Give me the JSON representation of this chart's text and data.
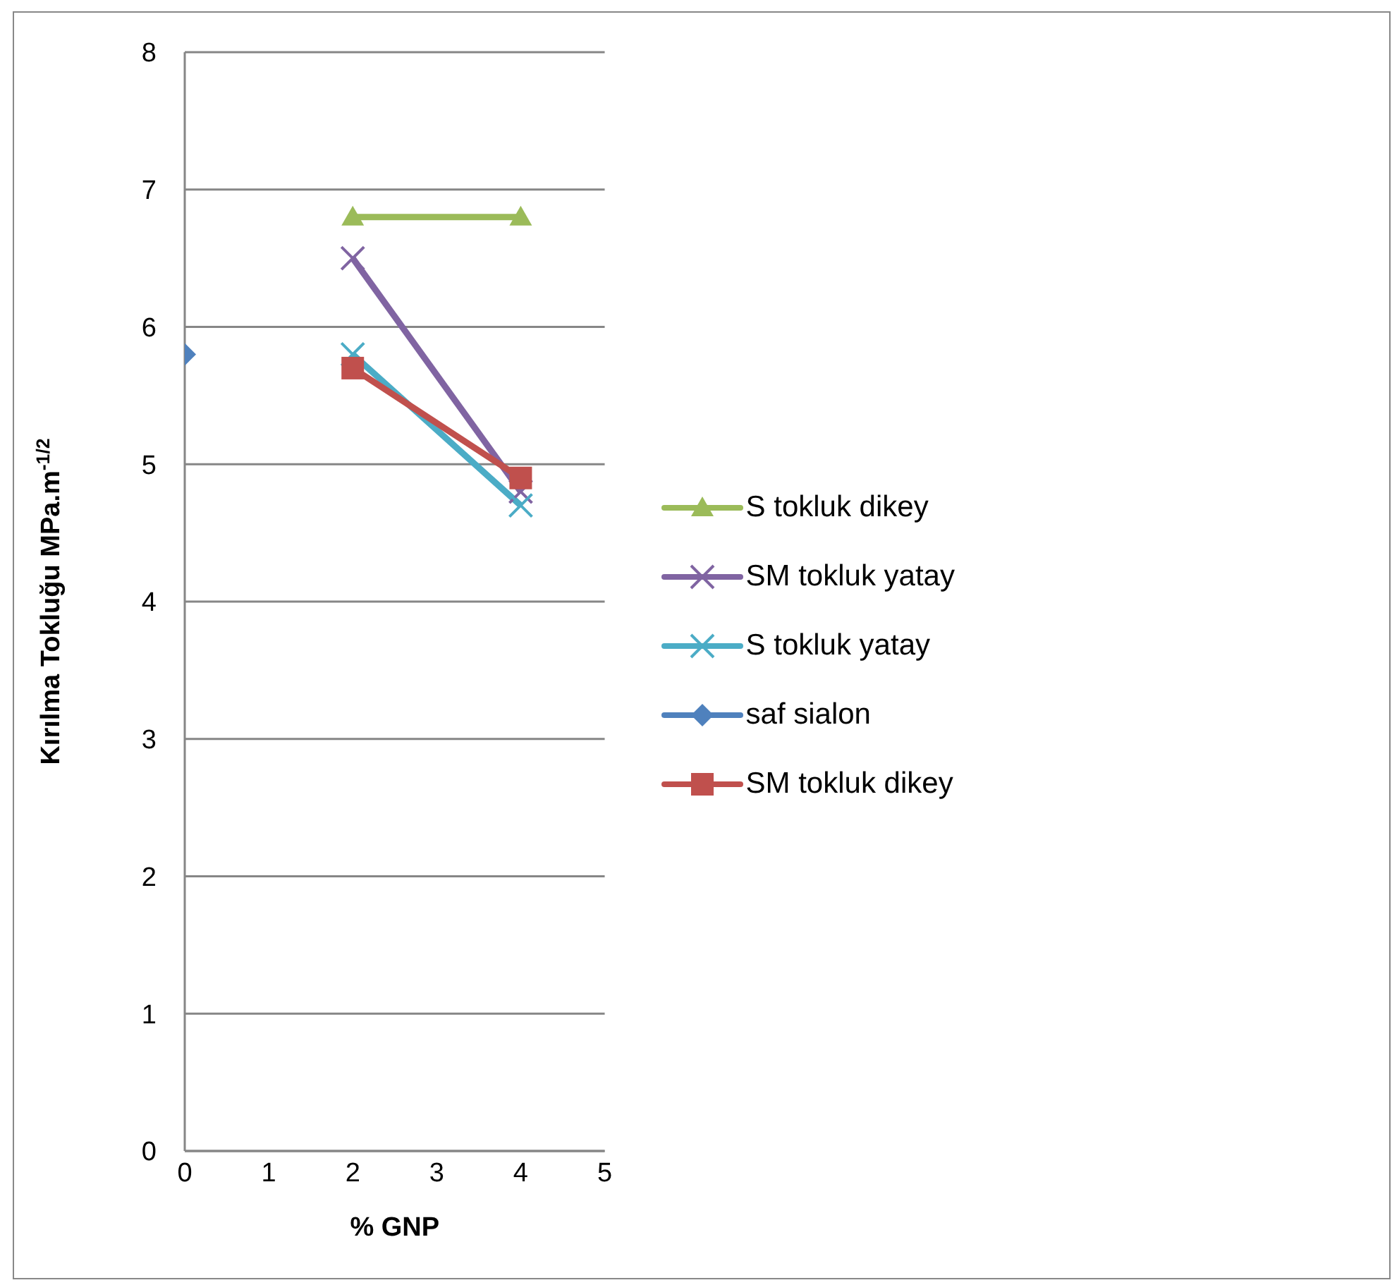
{
  "chart_data": {
    "type": "line",
    "xlabel": "% GNP",
    "ylabel": "Kırılma Tokluğu MPa.m$^{-1/2}$",
    "xlim": [
      0,
      5
    ],
    "xticks": [
      0,
      1,
      2,
      3,
      4,
      5
    ],
    "ylim": [
      0,
      8
    ],
    "yticks": [
      0,
      1,
      2,
      3,
      4,
      5,
      6,
      7,
      8
    ],
    "grid": "y",
    "legend": "right",
    "line_style": "solid",
    "series": [
      {
        "name": "S tokluk dikey",
        "color": "#9bbb59",
        "marker": "triangle",
        "x": [
          2,
          4
        ],
        "values": [
          6.8,
          6.8
        ]
      },
      {
        "name": "SM tokluk yatay",
        "color": "#8064a2",
        "marker": "cross",
        "x": [
          2,
          4
        ],
        "values": [
          6.5,
          4.8
        ]
      },
      {
        "name": "S tokluk yatay",
        "color": "#4bacc6",
        "marker": "cross",
        "x": [
          2,
          4
        ],
        "values": [
          5.8,
          4.7
        ]
      },
      {
        "name": "saf sialon",
        "color": "#4f81bd",
        "marker": "diamond",
        "x": [
          0
        ],
        "values": [
          5.8
        ]
      },
      {
        "name": "SM tokluk dikey",
        "color": "#c0504d",
        "marker": "square",
        "x": [
          2,
          4
        ],
        "values": [
          5.7,
          4.9
        ]
      }
    ]
  }
}
